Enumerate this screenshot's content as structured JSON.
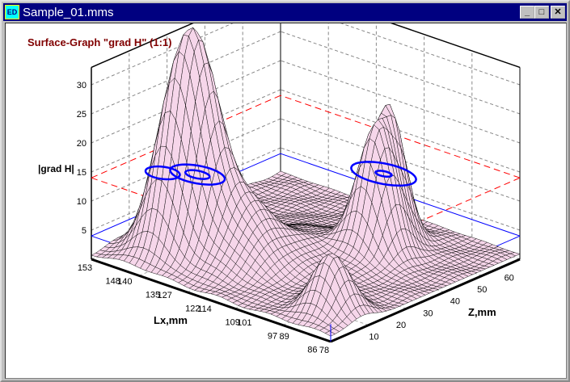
{
  "window": {
    "title": "Sample_01.mms",
    "icon": "ed-app-icon",
    "minimize": "_",
    "maximize": "□",
    "close": "✕"
  },
  "graph": {
    "title": "Surface-Graph \"grad H\" (1:1)",
    "type": "surface",
    "y_label": "|grad H|",
    "x_label": "Lx,mm",
    "z_label": "Z,mm",
    "y_ticks": [
      "5",
      "10",
      "15",
      "20",
      "25",
      "30"
    ],
    "x_ticks": [
      "153",
      "148",
      "140",
      "135",
      "127",
      "122",
      "114",
      "109",
      "101",
      "97",
      "89",
      "86",
      "78"
    ],
    "z_ticks": [
      "10",
      "20",
      "30",
      "40",
      "50",
      "60"
    ],
    "colors": {
      "surface": "#f6d6ea",
      "mesh": "#000000",
      "contour": "#0000ff",
      "level_red": "#ff0000",
      "level_blue": "#0000ff",
      "title": "#800000"
    }
  }
}
